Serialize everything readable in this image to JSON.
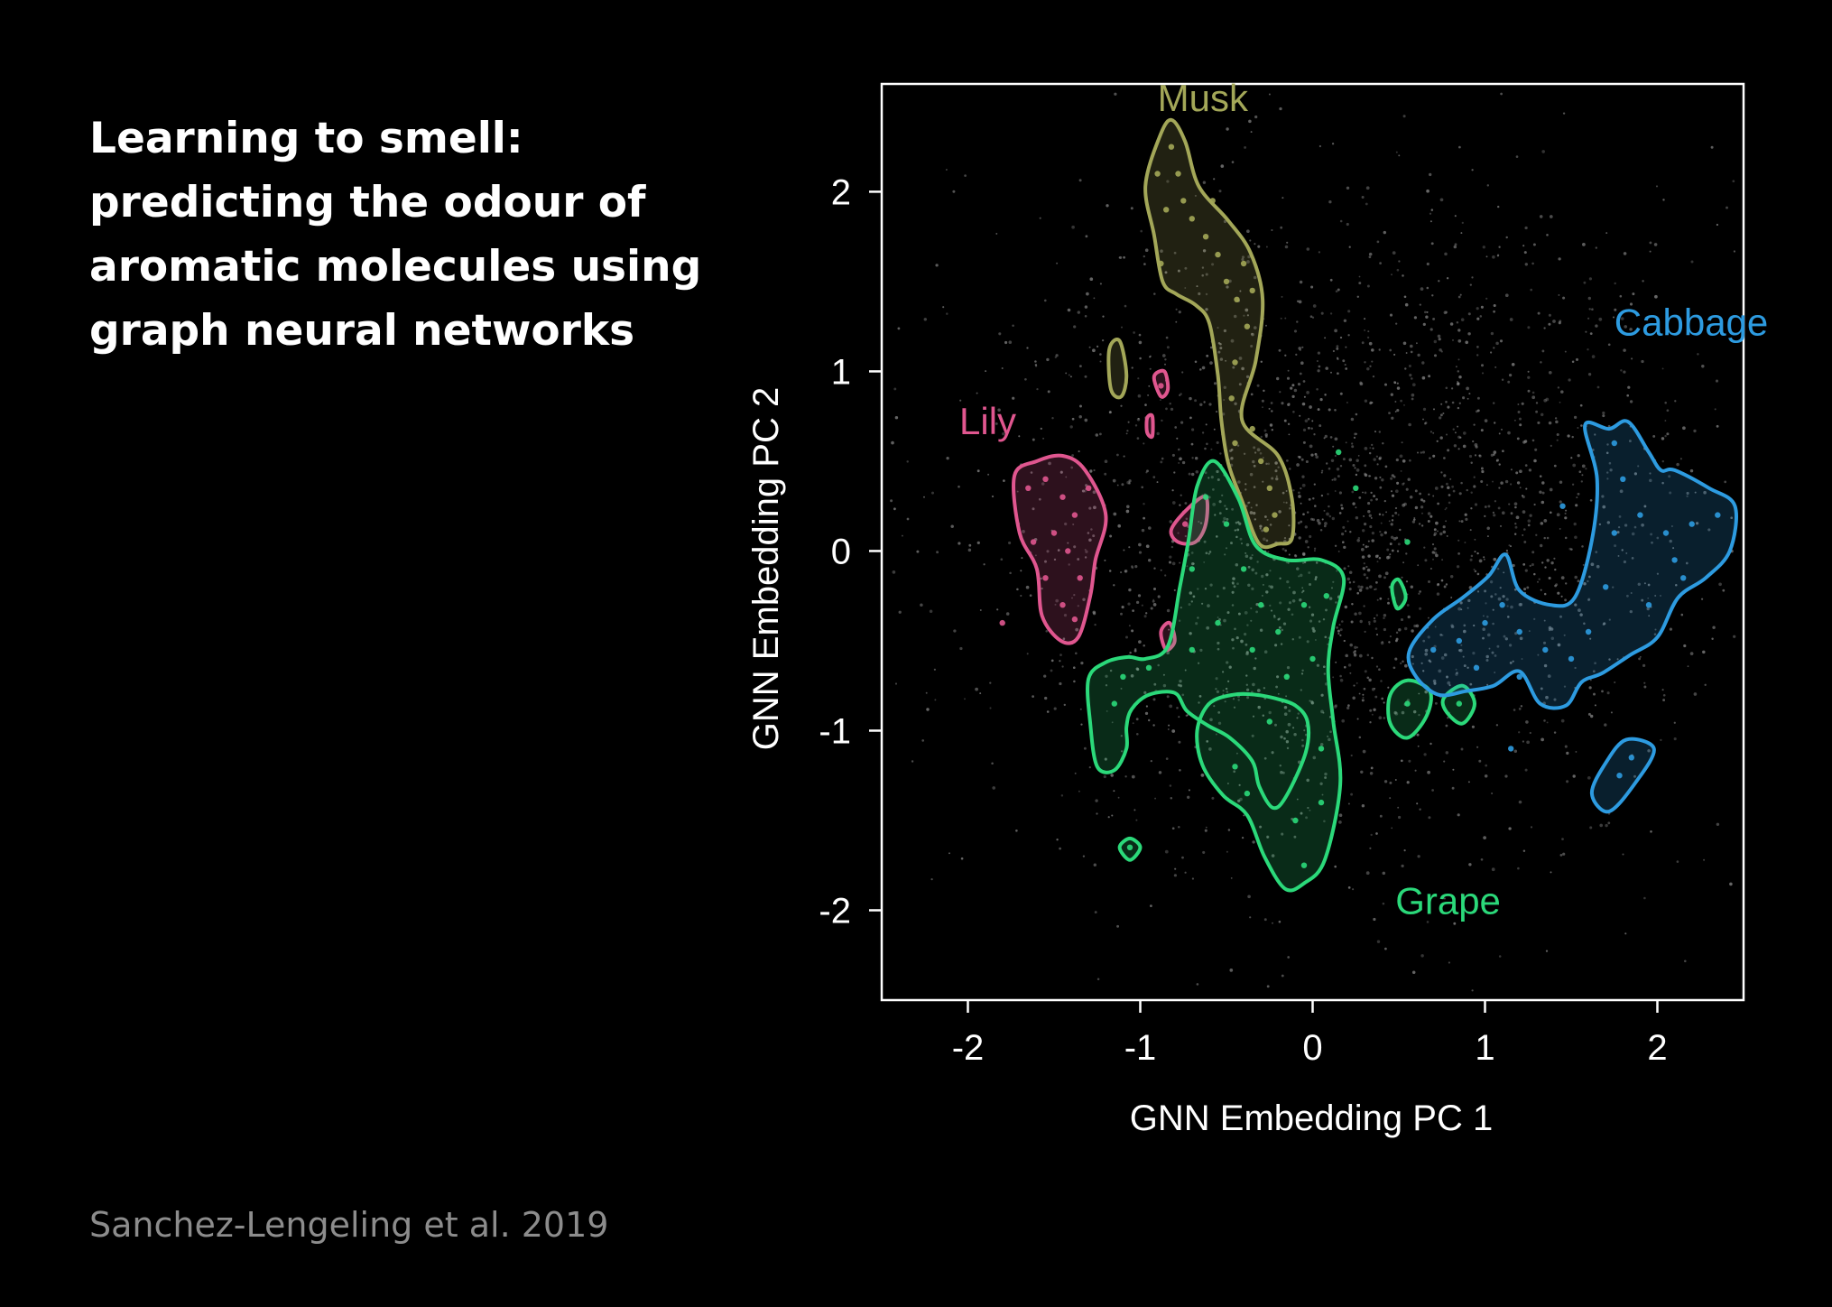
{
  "slide": {
    "title": "Learning to smell: predicting the odour of aromatic molecules using graph neural networks",
    "citation": "Sanchez-Lengeling et al. 2019"
  },
  "chart_data": {
    "type": "scatter",
    "title": "",
    "xlabel": "GNN Embedding PC 1",
    "ylabel": "GNN Embedding PC 2",
    "xlim": [
      -2.5,
      2.5
    ],
    "ylim": [
      -2.5,
      2.6
    ],
    "xticks": [
      -2,
      -1,
      0,
      1,
      2
    ],
    "xtick_labels": [
      "-2",
      "-1",
      "0",
      "1",
      "2"
    ],
    "yticks": [
      -2,
      -1,
      0,
      1,
      2
    ],
    "ytick_labels": [
      "-2",
      "-1",
      "0",
      "1",
      "2"
    ],
    "grid": false,
    "legend": "none",
    "background_points": {
      "color": "#8a8a8a",
      "description_count_approx": 2500,
      "center": [
        0.2,
        0.1
      ],
      "spread": [
        1.1,
        0.9
      ]
    },
    "regions": [
      {
        "name": "Musk",
        "color": "#a3a758",
        "label_pos": [
          -0.9,
          2.45
        ],
        "contours": [
          [
            [
              -0.97,
              2.03
            ],
            [
              -0.89,
              2.3
            ],
            [
              -0.82,
              2.4
            ],
            [
              -0.74,
              2.28
            ],
            [
              -0.66,
              2.03
            ],
            [
              -0.49,
              1.84
            ],
            [
              -0.36,
              1.66
            ],
            [
              -0.29,
              1.4
            ],
            [
              -0.33,
              1.06
            ],
            [
              -0.41,
              0.73
            ],
            [
              -0.2,
              0.53
            ],
            [
              -0.12,
              0.29
            ],
            [
              -0.12,
              0.07
            ],
            [
              -0.2,
              0.04
            ],
            [
              -0.31,
              0.04
            ],
            [
              -0.41,
              0.28
            ],
            [
              -0.49,
              0.49
            ],
            [
              -0.53,
              0.73
            ],
            [
              -0.55,
              0.98
            ],
            [
              -0.6,
              1.27
            ],
            [
              -0.68,
              1.37
            ],
            [
              -0.79,
              1.43
            ],
            [
              -0.87,
              1.5
            ],
            [
              -0.92,
              1.76
            ],
            [
              -0.97,
              2.03
            ]
          ],
          [
            [
              -1.18,
              1.12
            ],
            [
              -1.12,
              1.17
            ],
            [
              -1.08,
              0.98
            ],
            [
              -1.11,
              0.86
            ],
            [
              -1.17,
              0.9
            ],
            [
              -1.18,
              1.12
            ]
          ]
        ],
        "points": [
          [
            -0.9,
            2.1
          ],
          [
            -0.82,
            2.25
          ],
          [
            -0.78,
            2.1
          ],
          [
            -0.75,
            1.95
          ],
          [
            -0.7,
            1.85
          ],
          [
            -0.62,
            1.75
          ],
          [
            -0.55,
            1.65
          ],
          [
            -0.5,
            1.5
          ],
          [
            -0.44,
            1.4
          ],
          [
            -0.38,
            1.25
          ],
          [
            -0.45,
            1.05
          ],
          [
            -0.47,
            0.85
          ],
          [
            -0.35,
            0.68
          ],
          [
            -0.3,
            0.5
          ],
          [
            -0.25,
            0.35
          ],
          [
            -0.22,
            0.2
          ],
          [
            -0.4,
            1.6
          ],
          [
            -0.58,
            1.95
          ],
          [
            -0.85,
            1.9
          ],
          [
            -0.88,
            1.6
          ],
          [
            -0.35,
            1.45
          ],
          [
            -0.27,
            0.12
          ],
          [
            -0.45,
            0.6
          ]
        ]
      },
      {
        "name": "Lily",
        "color": "#e0568f",
        "label_pos": [
          -2.05,
          0.65
        ],
        "contours": [
          [
            [
              -1.73,
              0.42
            ],
            [
              -1.6,
              0.5
            ],
            [
              -1.45,
              0.53
            ],
            [
              -1.32,
              0.45
            ],
            [
              -1.2,
              0.2
            ],
            [
              -1.26,
              -0.05
            ],
            [
              -1.29,
              -0.25
            ],
            [
              -1.36,
              -0.48
            ],
            [
              -1.46,
              -0.5
            ],
            [
              -1.57,
              -0.36
            ],
            [
              -1.6,
              -0.1
            ],
            [
              -1.7,
              0.1
            ],
            [
              -1.73,
              0.42
            ]
          ],
          [
            [
              -0.82,
              0.12
            ],
            [
              -0.72,
              0.24
            ],
            [
              -0.62,
              0.3
            ],
            [
              -0.62,
              0.15
            ],
            [
              -0.68,
              0.05
            ],
            [
              -0.78,
              0.05
            ],
            [
              -0.82,
              0.12
            ]
          ],
          [
            [
              -0.92,
              0.97
            ],
            [
              -0.86,
              1.0
            ],
            [
              -0.84,
              0.9
            ],
            [
              -0.88,
              0.86
            ],
            [
              -0.92,
              0.97
            ]
          ],
          [
            [
              -0.96,
              0.74
            ],
            [
              -0.93,
              0.75
            ],
            [
              -0.93,
              0.64
            ],
            [
              -0.96,
              0.66
            ],
            [
              -0.96,
              0.74
            ]
          ],
          [
            [
              -0.88,
              -0.45
            ],
            [
              -0.83,
              -0.4
            ],
            [
              -0.8,
              -0.5
            ],
            [
              -0.85,
              -0.55
            ],
            [
              -0.88,
              -0.45
            ]
          ]
        ],
        "points": [
          [
            -1.65,
            0.35
          ],
          [
            -1.55,
            0.4
          ],
          [
            -1.45,
            0.3
          ],
          [
            -1.38,
            0.2
          ],
          [
            -1.5,
            0.1
          ],
          [
            -1.42,
            0.0
          ],
          [
            -1.35,
            -0.15
          ],
          [
            -1.45,
            -0.3
          ],
          [
            -1.55,
            -0.15
          ],
          [
            -1.3,
            0.35
          ],
          [
            -1.62,
            0.05
          ],
          [
            -1.8,
            -0.4
          ],
          [
            -1.38,
            -0.38
          ],
          [
            -0.74,
            0.15
          ],
          [
            -0.88,
            0.92
          ]
        ]
      },
      {
        "name": "Grape",
        "color": "#2bd97a",
        "label_pos": [
          0.48,
          -2.02
        ],
        "contours": [
          [
            [
              -1.3,
              -0.71
            ],
            [
              -1.2,
              -0.62
            ],
            [
              -1.07,
              -0.59
            ],
            [
              -0.97,
              -0.6
            ],
            [
              -0.84,
              -0.53
            ],
            [
              -0.77,
              -0.2
            ],
            [
              -0.72,
              0.06
            ],
            [
              -0.67,
              0.36
            ],
            [
              -0.57,
              0.5
            ],
            [
              -0.43,
              0.29
            ],
            [
              -0.33,
              0.03
            ],
            [
              -0.15,
              -0.05
            ],
            [
              0.05,
              -0.05
            ],
            [
              0.18,
              -0.15
            ],
            [
              0.12,
              -0.42
            ],
            [
              0.09,
              -0.66
            ],
            [
              0.12,
              -0.95
            ],
            [
              0.16,
              -1.3
            ],
            [
              0.07,
              -1.72
            ],
            [
              -0.05,
              -1.85
            ],
            [
              -0.16,
              -1.88
            ],
            [
              -0.28,
              -1.7
            ],
            [
              -0.38,
              -1.47
            ],
            [
              -0.52,
              -1.36
            ],
            [
              -0.64,
              -1.19
            ],
            [
              -0.67,
              -1.0
            ],
            [
              -0.6,
              -0.85
            ],
            [
              -0.46,
              -0.8
            ],
            [
              -0.33,
              -0.8
            ],
            [
              -0.22,
              -0.82
            ],
            [
              -0.1,
              -0.86
            ],
            [
              -0.03,
              -0.95
            ],
            [
              -0.04,
              -1.12
            ],
            [
              -0.15,
              -1.36
            ],
            [
              -0.23,
              -1.43
            ],
            [
              -0.31,
              -1.31
            ],
            [
              -0.35,
              -1.17
            ],
            [
              -0.48,
              -1.04
            ],
            [
              -0.61,
              -0.97
            ],
            [
              -0.73,
              -0.89
            ],
            [
              -0.8,
              -0.79
            ],
            [
              -0.95,
              -0.8
            ],
            [
              -1.05,
              -0.88
            ],
            [
              -1.08,
              -0.98
            ],
            [
              -1.08,
              -1.1
            ],
            [
              -1.15,
              -1.22
            ],
            [
              -1.25,
              -1.2
            ],
            [
              -1.29,
              -0.96
            ],
            [
              -1.3,
              -0.71
            ]
          ],
          [
            [
              -1.12,
              -1.65
            ],
            [
              -1.06,
              -1.6
            ],
            [
              -1.0,
              -1.65
            ],
            [
              -1.06,
              -1.72
            ],
            [
              -1.12,
              -1.65
            ]
          ],
          [
            [
              0.45,
              -0.8
            ],
            [
              0.55,
              -0.72
            ],
            [
              0.68,
              -0.78
            ],
            [
              0.66,
              -0.92
            ],
            [
              0.55,
              -1.04
            ],
            [
              0.45,
              -0.96
            ],
            [
              0.45,
              -0.8
            ]
          ],
          [
            [
              0.76,
              -0.82
            ],
            [
              0.87,
              -0.75
            ],
            [
              0.94,
              -0.85
            ],
            [
              0.87,
              -0.96
            ],
            [
              0.78,
              -0.9
            ],
            [
              0.76,
              -0.82
            ]
          ],
          [
            [
              0.46,
              -0.2
            ],
            [
              0.5,
              -0.16
            ],
            [
              0.54,
              -0.26
            ],
            [
              0.49,
              -0.32
            ],
            [
              0.46,
              -0.2
            ]
          ]
        ],
        "points": [
          [
            -0.62,
            0.3
          ],
          [
            -0.5,
            0.15
          ],
          [
            -0.4,
            -0.1
          ],
          [
            -0.3,
            -0.3
          ],
          [
            -0.55,
            -0.4
          ],
          [
            -0.7,
            -0.55
          ],
          [
            -0.2,
            -0.45
          ],
          [
            -0.05,
            -0.3
          ],
          [
            0.0,
            -0.6
          ],
          [
            -0.15,
            -0.7
          ],
          [
            -0.35,
            -0.55
          ],
          [
            -1.1,
            -0.7
          ],
          [
            -1.15,
            -0.85
          ],
          [
            -0.95,
            -0.65
          ],
          [
            -0.45,
            -1.2
          ],
          [
            -0.38,
            -1.35
          ],
          [
            -0.1,
            -1.5
          ],
          [
            0.05,
            -1.4
          ],
          [
            -0.05,
            -1.75
          ],
          [
            0.05,
            -1.1
          ],
          [
            -1.06,
            -1.65
          ],
          [
            0.55,
            -0.85
          ],
          [
            0.85,
            -0.85
          ],
          [
            -0.7,
            -0.1
          ],
          [
            -0.25,
            -0.95
          ],
          [
            0.08,
            -0.25
          ],
          [
            0.55,
            0.05
          ],
          [
            0.25,
            0.35
          ],
          [
            0.15,
            0.55
          ]
        ]
      },
      {
        "name": "Cabbage",
        "color": "#2d9be0",
        "label_pos": [
          1.75,
          1.2
        ],
        "contours": [
          [
            [
              0.56,
              -0.56
            ],
            [
              0.7,
              -0.38
            ],
            [
              0.87,
              -0.26
            ],
            [
              1.02,
              -0.14
            ],
            [
              1.12,
              -0.02
            ],
            [
              1.2,
              -0.22
            ],
            [
              1.38,
              -0.3
            ],
            [
              1.52,
              -0.26
            ],
            [
              1.62,
              0.06
            ],
            [
              1.65,
              0.4
            ],
            [
              1.58,
              0.7
            ],
            [
              1.72,
              0.68
            ],
            [
              1.83,
              0.72
            ],
            [
              1.95,
              0.55
            ],
            [
              2.02,
              0.45
            ],
            [
              2.1,
              0.45
            ],
            [
              2.3,
              0.35
            ],
            [
              2.45,
              0.25
            ],
            [
              2.42,
              0.0
            ],
            [
              2.28,
              -0.15
            ],
            [
              2.12,
              -0.26
            ],
            [
              2.0,
              -0.48
            ],
            [
              1.84,
              -0.58
            ],
            [
              1.68,
              -0.68
            ],
            [
              1.56,
              -0.73
            ],
            [
              1.47,
              -0.86
            ],
            [
              1.32,
              -0.85
            ],
            [
              1.2,
              -0.67
            ],
            [
              1.05,
              -0.75
            ],
            [
              0.89,
              -0.78
            ],
            [
              0.73,
              -0.8
            ],
            [
              0.6,
              -0.7
            ],
            [
              0.56,
              -0.56
            ]
          ],
          [
            [
              1.62,
              -1.35
            ],
            [
              1.7,
              -1.18
            ],
            [
              1.82,
              -1.05
            ],
            [
              1.98,
              -1.1
            ],
            [
              1.88,
              -1.28
            ],
            [
              1.72,
              -1.45
            ],
            [
              1.62,
              -1.35
            ]
          ]
        ],
        "points": [
          [
            0.7,
            -0.55
          ],
          [
            0.85,
            -0.5
          ],
          [
            1.0,
            -0.4
          ],
          [
            1.1,
            -0.3
          ],
          [
            1.2,
            -0.45
          ],
          [
            1.35,
            -0.55
          ],
          [
            1.5,
            -0.6
          ],
          [
            1.6,
            -0.45
          ],
          [
            1.7,
            -0.2
          ],
          [
            1.75,
            0.1
          ],
          [
            1.8,
            0.4
          ],
          [
            1.9,
            0.2
          ],
          [
            2.05,
            0.1
          ],
          [
            2.2,
            0.15
          ],
          [
            2.35,
            0.2
          ],
          [
            1.95,
            -0.3
          ],
          [
            2.1,
            -0.05
          ],
          [
            1.75,
            0.6
          ],
          [
            1.2,
            -0.7
          ],
          [
            1.78,
            -1.25
          ],
          [
            1.85,
            -1.15
          ],
          [
            1.45,
            0.25
          ],
          [
            2.15,
            -0.15
          ],
          [
            0.95,
            -0.65
          ],
          [
            1.15,
            -1.1
          ]
        ]
      }
    ]
  }
}
